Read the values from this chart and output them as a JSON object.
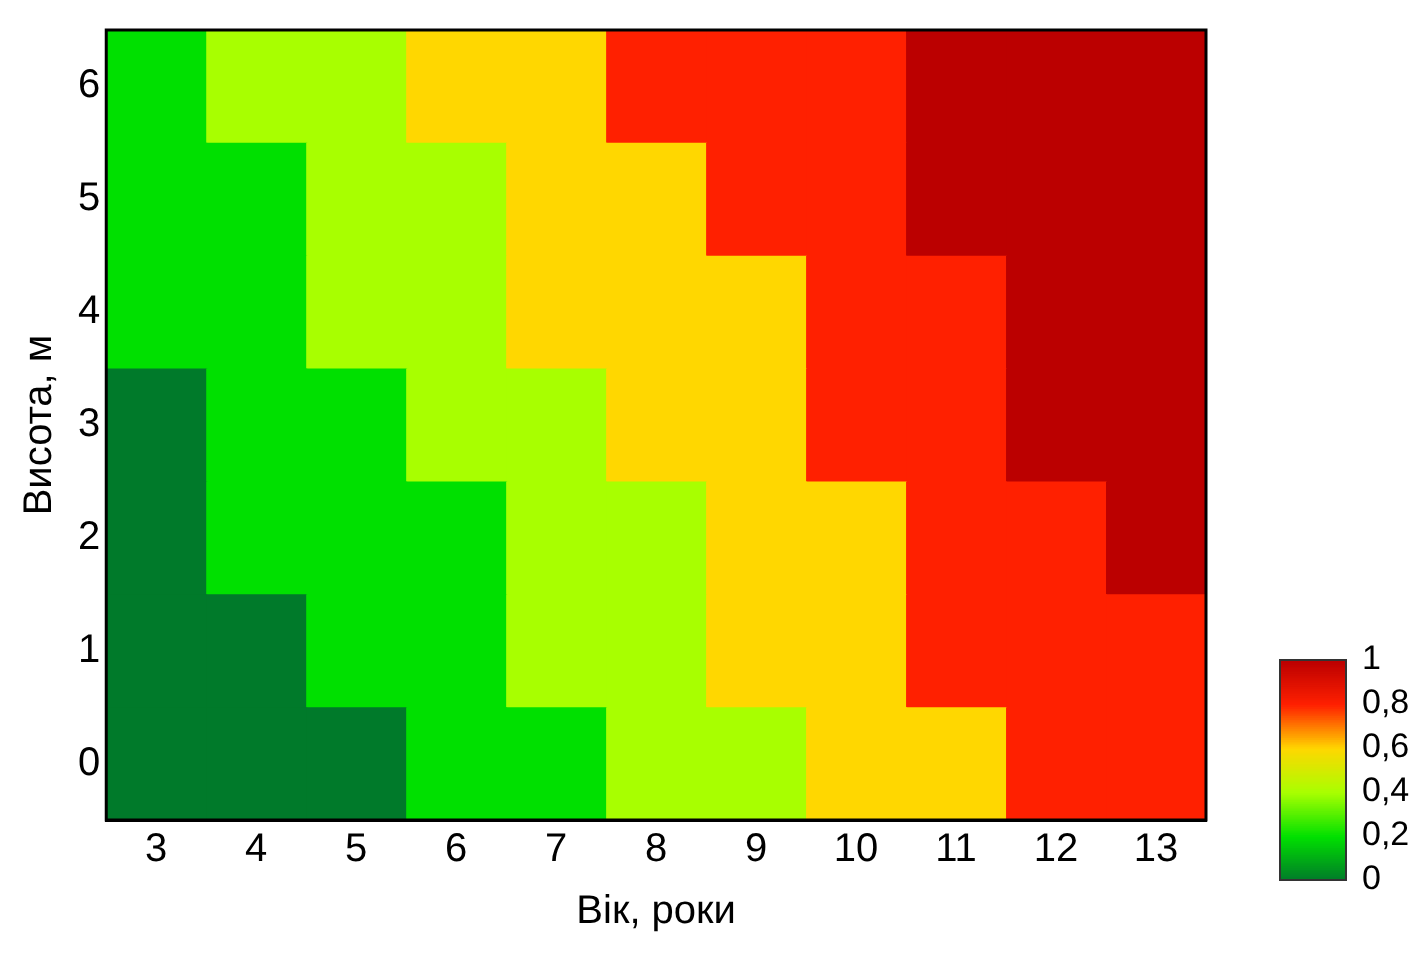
{
  "chart_data": {
    "type": "heatmap",
    "xlabel": "Вік, роки",
    "ylabel": "Висота, м",
    "categories": [
      "3",
      "4",
      "5",
      "6",
      "7",
      "8",
      "9",
      "10",
      "11",
      "12",
      "13"
    ],
    "y_categories": [
      "6",
      "5",
      "4",
      "3",
      "2",
      "1",
      "0"
    ],
    "clim": [
      0,
      1
    ],
    "cticks": [
      1,
      {
        "value": 0.8,
        "label": "0,8"
      },
      {
        "value": 0.6,
        "label": "0,6"
      },
      {
        "value": 0.4,
        "label": "0,4"
      },
      {
        "value": 0.2,
        "label": "0,2"
      },
      0
    ],
    "cells": [
      [
        0.2,
        0.4,
        0.4,
        0.6,
        0.6,
        0.8,
        0.8,
        0.8,
        1,
        1,
        1
      ],
      [
        0.2,
        0.2,
        0.4,
        0.4,
        0.6,
        0.6,
        0.8,
        0.8,
        1,
        1,
        1
      ],
      [
        0.2,
        0.2,
        0.4,
        0.4,
        0.6,
        0.6,
        0.6,
        0.8,
        0.8,
        1,
        1
      ],
      [
        0,
        0.2,
        0.2,
        0.4,
        0.4,
        0.6,
        0.6,
        0.8,
        0.8,
        1,
        1
      ],
      [
        0,
        0.2,
        0.2,
        0.2,
        0.4,
        0.4,
        0.6,
        0.6,
        0.8,
        0.8,
        1
      ],
      [
        0,
        0,
        0.2,
        0.2,
        0.4,
        0.4,
        0.6,
        0.6,
        0.8,
        0.8,
        0.8
      ],
      [
        0,
        0,
        0,
        0.2,
        0.2,
        0.4,
        0.4,
        0.6,
        0.6,
        0.8,
        0.8
      ]
    ]
  }
}
